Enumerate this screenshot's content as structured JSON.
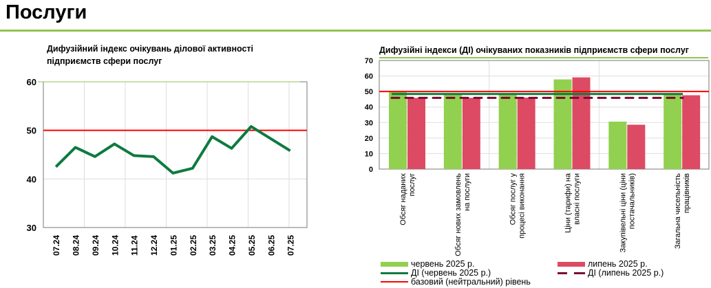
{
  "page_title": "Послуги",
  "colors": {
    "accent": "#92c353",
    "june": "#92d050",
    "july": "#dc4b63",
    "di_june": "#0e7a40",
    "di_july": "#7a0a30",
    "baseline": "#ff0000"
  },
  "chart_data": [
    {
      "type": "line",
      "title": "Дифузійний індекс очікувань ділової активності підприємств сфери послуг",
      "categories": [
        "07.24",
        "08.24",
        "09.24",
        "10.24",
        "11.24",
        "12.24",
        "01.25",
        "02.25",
        "03.25",
        "04.25",
        "05.25",
        "06.25",
        "07.25"
      ],
      "values": [
        42.5,
        46.5,
        44.6,
        47.2,
        44.8,
        44.6,
        41.2,
        42.2,
        48.7,
        46.3,
        50.8,
        48.3,
        45.8
      ],
      "ylim": [
        30,
        60
      ],
      "yticks": [
        "30",
        "40",
        "50",
        "60"
      ],
      "baseline": 50
    },
    {
      "type": "bar",
      "title": "Дифузійні індекси (ДІ) очікуваних показників підприємств сфери послуг",
      "categories": [
        "Обсяг наданих послуг",
        "Обсяг нових замовлень на послуги",
        "Обсяг послуг у процесі виконання",
        "Ціни (тарифи) на власні послуги",
        "Закупівельні ціни (ціни постачальників)",
        "Загальна чисельність працівників"
      ],
      "series": [
        {
          "name": "червень 2025 р.",
          "values": [
            50.3,
            48.3,
            48.6,
            57.8,
            30.6,
            48.7
          ]
        },
        {
          "name": "липень 2025 р.",
          "values": [
            45.9,
            45.9,
            46.1,
            59.1,
            28.6,
            47.6
          ]
        }
      ],
      "di": [
        {
          "name": "ДІ (червень 2025 р.)",
          "value": 48.4
        },
        {
          "name": "ДІ (липень 2025 р.)",
          "value": 45.9
        }
      ],
      "baseline": {
        "name": "базовий (нейтральний) рівень",
        "value": 50
      },
      "ylim": [
        0,
        70
      ],
      "yticks": [
        "0",
        "10",
        "20",
        "30",
        "40",
        "50",
        "60",
        "70"
      ]
    }
  ]
}
